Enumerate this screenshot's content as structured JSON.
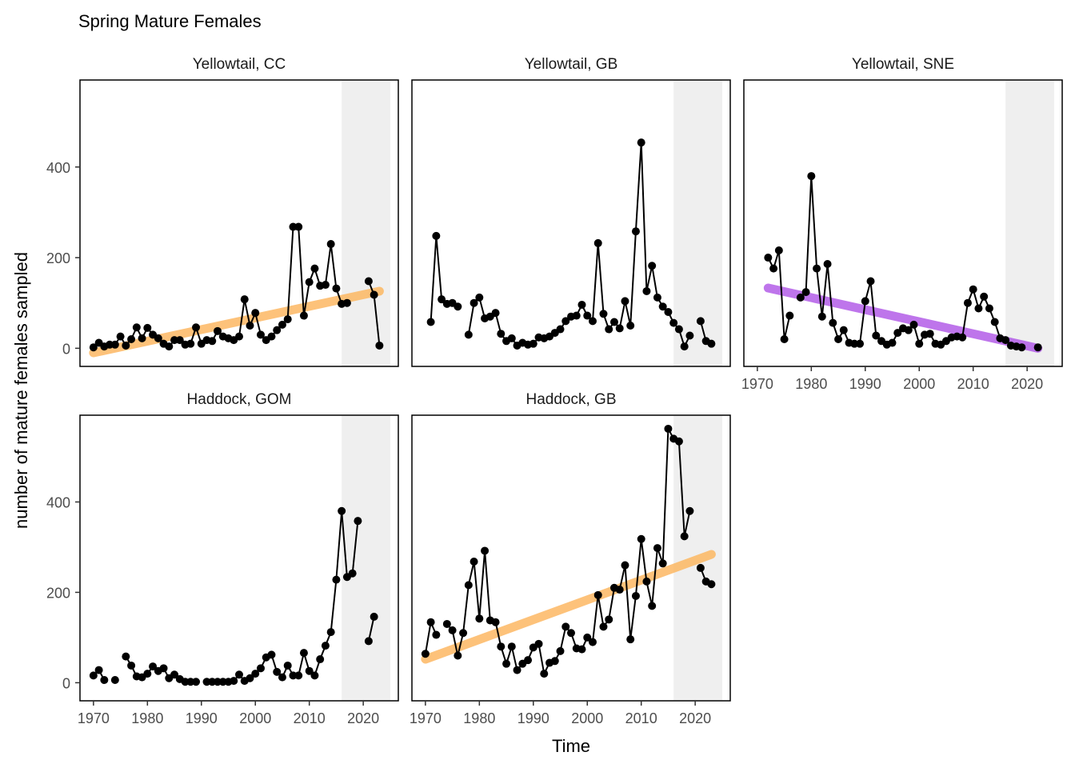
{
  "title": "Spring Mature Females",
  "xlabel": "Time",
  "ylabel": "number of mature females sampled",
  "colors": {
    "line": "#000000",
    "point": "#000000",
    "shade": "#efefef",
    "trend_up": "#fdb863",
    "trend_down": "#b35de8"
  },
  "chart_data": {
    "type": "line",
    "title": "Spring Mature Females",
    "xlabel": "Time",
    "ylabel": "number of mature females sampled",
    "xlim": [
      1967.5,
      2026.5
    ],
    "ylim": [
      -40,
      592
    ],
    "xticks": [
      1970,
      1980,
      1990,
      2000,
      2010,
      2020
    ],
    "yticks": [
      0,
      200,
      400
    ],
    "shaded_region": [
      2016,
      2025
    ],
    "grid": false,
    "panels": [
      {
        "name": "Yellowtail, CC",
        "x": [
          1970,
          1971,
          1972,
          1973,
          1974,
          1975,
          1976,
          1977,
          1978,
          1979,
          1980,
          1981,
          1982,
          1983,
          1984,
          1985,
          1986,
          1987,
          1988,
          1989,
          1990,
          1991,
          1992,
          1993,
          1994,
          1995,
          1996,
          1997,
          1998,
          1999,
          2000,
          2001,
          2002,
          2003,
          2004,
          2005,
          2006,
          2007,
          2008,
          2009,
          2010,
          2011,
          2012,
          2013,
          2014,
          2015,
          2016,
          2017,
          2018,
          2019,
          2020,
          2021,
          2022,
          2023
        ],
        "y": [
          2,
          12,
          4,
          8,
          8,
          26,
          6,
          20,
          46,
          22,
          45,
          30,
          22,
          10,
          4,
          18,
          18,
          8,
          10,
          46,
          10,
          18,
          16,
          38,
          26,
          22,
          18,
          26,
          108,
          50,
          78,
          30,
          18,
          26,
          40,
          52,
          64,
          268,
          268,
          72,
          146,
          176,
          138,
          140,
          230,
          132,
          98,
          100,
          null,
          null,
          null,
          148,
          118,
          6
        ],
        "trend": {
          "direction": "increasing",
          "start": [
            1970,
            -10
          ],
          "end": [
            2023,
            126
          ]
        }
      },
      {
        "name": "Yellowtail, GB",
        "x": [
          1971,
          1972,
          1973,
          1974,
          1975,
          1976,
          1977,
          1978,
          1979,
          1980,
          1981,
          1982,
          1983,
          1984,
          1985,
          1986,
          1987,
          1988,
          1989,
          1990,
          1991,
          1992,
          1993,
          1994,
          1995,
          1996,
          1997,
          1998,
          1999,
          2000,
          2001,
          2002,
          2003,
          2004,
          2005,
          2006,
          2007,
          2008,
          2009,
          2010,
          2011,
          2012,
          2013,
          2014,
          2015,
          2016,
          2017,
          2018,
          2019,
          2020,
          2021,
          2022,
          2023
        ],
        "y": [
          58,
          248,
          108,
          98,
          100,
          92,
          null,
          30,
          100,
          112,
          66,
          70,
          78,
          32,
          16,
          22,
          6,
          12,
          8,
          10,
          24,
          22,
          26,
          34,
          42,
          60,
          70,
          72,
          96,
          72,
          60,
          232,
          76,
          42,
          58,
          44,
          104,
          50,
          258,
          454,
          126,
          182,
          112,
          92,
          80,
          56,
          42,
          4,
          28,
          null,
          60,
          16,
          10
        ],
        "trend": null
      },
      {
        "name": "Yellowtail, SNE",
        "x": [
          1972,
          1973,
          1974,
          1975,
          1976,
          1977,
          1978,
          1979,
          1980,
          1981,
          1982,
          1983,
          1984,
          1985,
          1986,
          1987,
          1988,
          1989,
          1990,
          1991,
          1992,
          1993,
          1994,
          1995,
          1996,
          1997,
          1998,
          1999,
          2000,
          2001,
          2002,
          2003,
          2004,
          2005,
          2006,
          2007,
          2008,
          2009,
          2010,
          2011,
          2012,
          2013,
          2014,
          2015,
          2016,
          2017,
          2018,
          2019,
          2020,
          2021,
          2022
        ],
        "y": [
          200,
          176,
          216,
          20,
          72,
          null,
          112,
          124,
          380,
          176,
          70,
          186,
          56,
          20,
          40,
          12,
          10,
          10,
          104,
          148,
          28,
          16,
          8,
          12,
          34,
          44,
          40,
          52,
          10,
          30,
          32,
          10,
          8,
          16,
          24,
          26,
          24,
          100,
          130,
          88,
          114,
          88,
          58,
          22,
          18,
          6,
          4,
          2,
          null,
          null,
          2
        ],
        "trend": {
          "direction": "decreasing",
          "start": [
            1972,
            133
          ],
          "end": [
            2022,
            0
          ]
        }
      },
      {
        "name": "Haddock, GOM",
        "x": [
          1970,
          1971,
          1972,
          1973,
          1974,
          1975,
          1976,
          1977,
          1978,
          1979,
          1980,
          1981,
          1982,
          1983,
          1984,
          1985,
          1986,
          1987,
          1988,
          1989,
          1990,
          1991,
          1992,
          1993,
          1994,
          1995,
          1996,
          1997,
          1998,
          1999,
          2000,
          2001,
          2002,
          2003,
          2004,
          2005,
          2006,
          2007,
          2008,
          2009,
          2010,
          2011,
          2012,
          2013,
          2014,
          2015,
          2016,
          2017,
          2018,
          2019,
          2020,
          2021,
          2022
        ],
        "y": [
          16,
          28,
          6,
          null,
          6,
          null,
          58,
          38,
          14,
          12,
          20,
          36,
          26,
          32,
          10,
          18,
          8,
          2,
          2,
          2,
          null,
          2,
          2,
          2,
          2,
          2,
          4,
          18,
          4,
          10,
          20,
          32,
          56,
          62,
          24,
          12,
          38,
          16,
          16,
          66,
          26,
          16,
          52,
          82,
          112,
          228,
          380,
          234,
          242,
          358,
          null,
          92,
          146
        ],
        "trend": null
      },
      {
        "name": "Haddock, GB",
        "x": [
          1970,
          1971,
          1972,
          1973,
          1974,
          1975,
          1976,
          1977,
          1978,
          1979,
          1980,
          1981,
          1982,
          1983,
          1984,
          1985,
          1986,
          1987,
          1988,
          1989,
          1990,
          1991,
          1992,
          1993,
          1994,
          1995,
          1996,
          1997,
          1998,
          1999,
          2000,
          2001,
          2002,
          2003,
          2004,
          2005,
          2006,
          2007,
          2008,
          2009,
          2010,
          2011,
          2012,
          2013,
          2014,
          2015,
          2016,
          2017,
          2018,
          2019,
          2020,
          2021,
          2022,
          2023
        ],
        "y": [
          64,
          134,
          106,
          null,
          130,
          116,
          60,
          110,
          216,
          268,
          142,
          292,
          138,
          134,
          80,
          42,
          80,
          28,
          42,
          50,
          78,
          86,
          20,
          44,
          48,
          70,
          124,
          110,
          76,
          74,
          100,
          90,
          194,
          124,
          140,
          210,
          206,
          260,
          96,
          192,
          318,
          224,
          170,
          298,
          264,
          562,
          540,
          534,
          324,
          380,
          null,
          254,
          224,
          218
        ],
        "trend": {
          "direction": "increasing",
          "start": [
            1970,
            52
          ],
          "end": [
            2023,
            284
          ]
        }
      }
    ]
  }
}
